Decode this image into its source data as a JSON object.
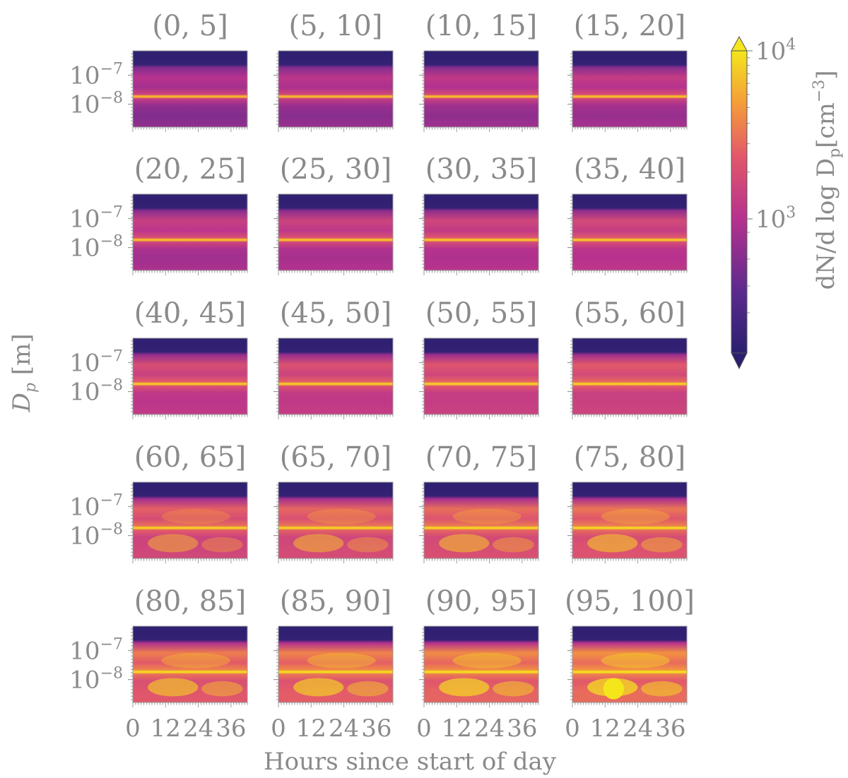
{
  "chart_data": {
    "type": "heatmap",
    "description_layout": "5x4 grid of small-multiple heatmaps",
    "colormap": "plasma",
    "colors": {
      "low": "#2a1f6e",
      "mid": "#b8328e",
      "high": "#f4e61b",
      "text": "#8a8a8a"
    },
    "panel_titles": [
      "(0, 5]",
      "(5, 10]",
      "(10, 15]",
      "(15, 20]",
      "(20, 25]",
      "(25, 30]",
      "(30, 35]",
      "(35, 40]",
      "(40, 45]",
      "(45, 50]",
      "(50, 55]",
      "(55, 60]",
      "(60, 65]",
      "(65, 70]",
      "(70, 75]",
      "(75, 80]",
      "(80, 85]",
      "(85, 90]",
      "(90, 95]",
      "(95, 100]"
    ],
    "xlabel": "Hours since start of day",
    "x_ticks": [
      0,
      12,
      24,
      36
    ],
    "x_tick_labels": [
      "0",
      "12",
      "24",
      "36"
    ],
    "xlim": [
      0,
      42
    ],
    "ylabel": {
      "base": "D",
      "sub": "p",
      "unit": " [m]"
    },
    "y_ticks": [
      {
        "base": "10",
        "exp": "−7",
        "value": 1e-07
      },
      {
        "base": "10",
        "exp": "−8",
        "value": 1e-08
      }
    ],
    "yscale": "log",
    "colorbar": {
      "label": {
        "pre": "dN/d log D",
        "sub": "p",
        "unit": "[cm",
        "exp": "−3",
        "close": "]"
      },
      "ticks": [
        {
          "base": "10",
          "exp": "4",
          "value": 10000
        },
        {
          "base": "10",
          "exp": "3",
          "value": 1000
        }
      ],
      "extend": "both",
      "scale": "log"
    }
  }
}
